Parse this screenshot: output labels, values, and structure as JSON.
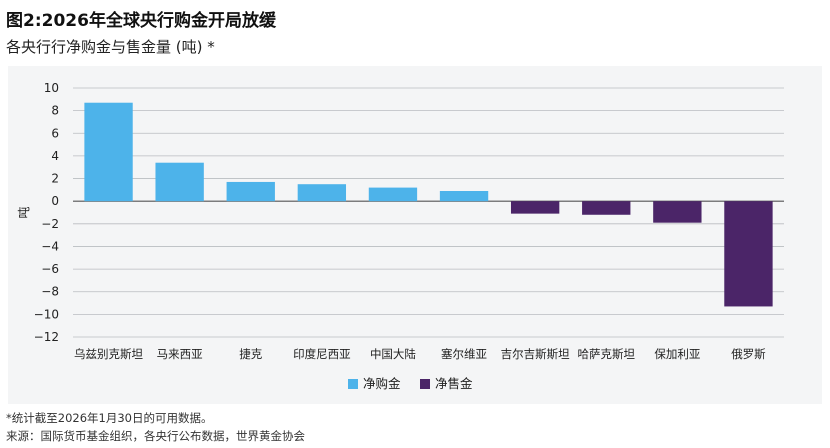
{
  "title": "图2:2026年全球央行购金开局放缓",
  "subtitle": "各央行行净购金与售金量 (吨) *",
  "footnote": "*统计截至2026年1月30日的可用数据。",
  "source": "来源：国际货币基金组织，各央行公布数据，世界黄金协会",
  "chart_data": {
    "type": "bar",
    "ylabel": "吨",
    "ylim": [
      -12,
      10
    ],
    "yticks": [
      10,
      8,
      6,
      4,
      2,
      0,
      -2,
      -4,
      -6,
      -8,
      -10,
      -12
    ],
    "grid": true,
    "legend_position": "bottom-center",
    "categories": [
      "乌兹别克斯坦",
      "马来西亚",
      "捷克",
      "印度尼西亚",
      "中国大陆",
      "塞尔维亚",
      "吉尔吉斯斯坦",
      "哈萨克斯坦",
      "保加利亚",
      "俄罗斯"
    ],
    "values": [
      8.7,
      3.4,
      1.7,
      1.5,
      1.2,
      0.9,
      -1.1,
      -1.2,
      -1.9,
      -9.3
    ],
    "series": [
      {
        "name": "净购金",
        "color": "#4db3ea"
      },
      {
        "name": "净售金",
        "color": "#4b2568"
      }
    ]
  }
}
